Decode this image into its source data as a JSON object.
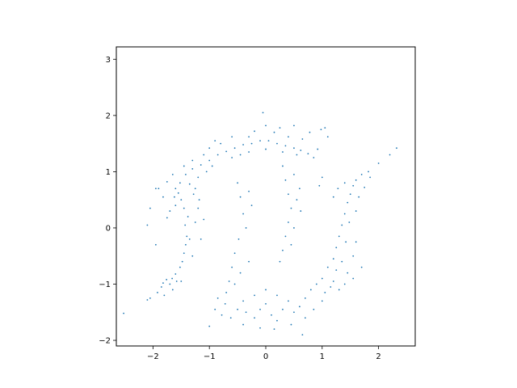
{
  "chart_data": {
    "type": "scatter",
    "title": "",
    "xlabel": "",
    "ylabel": "",
    "xlim": [
      -2.65,
      2.65
    ],
    "ylim": [
      -2.1,
      3.22
    ],
    "x_ticks": [
      -2,
      -1,
      0,
      1,
      2
    ],
    "y_ticks": [
      -2,
      -1,
      0,
      1,
      2,
      3
    ],
    "x_tick_labels": [
      "−2",
      "−1",
      "0",
      "1",
      "2"
    ],
    "y_tick_labels": [
      "−2",
      "−1",
      "0",
      "1",
      "2",
      "3"
    ],
    "grid": false,
    "legend": "none",
    "marker_color": "#1f77b4",
    "series": [
      {
        "points": [
          [
            -2.52,
            -1.52
          ],
          [
            -2.1,
            -1.28
          ],
          [
            -2.05,
            -1.25
          ],
          [
            -1.92,
            -1.15
          ],
          [
            -1.85,
            -1.05
          ],
          [
            -1.82,
            -0.98
          ],
          [
            -1.76,
            -0.92
          ],
          [
            -1.7,
            -1.0
          ],
          [
            -1.66,
            -0.9
          ],
          [
            -1.6,
            -0.82
          ],
          [
            -1.58,
            -0.95
          ],
          [
            -1.52,
            -0.7
          ],
          [
            -1.48,
            -0.6
          ],
          [
            -1.45,
            -0.45
          ],
          [
            -1.42,
            -0.3
          ],
          [
            -1.4,
            -0.15
          ],
          [
            -1.43,
            0.05
          ],
          [
            -1.38,
            0.2
          ],
          [
            -1.45,
            0.35
          ],
          [
            -1.5,
            0.5
          ],
          [
            -1.55,
            0.62
          ],
          [
            -1.6,
            0.7
          ],
          [
            -1.62,
            0.55
          ],
          [
            -1.52,
            0.8
          ],
          [
            -1.42,
            0.95
          ],
          [
            -1.3,
            1.05
          ],
          [
            -1.15,
            1.12
          ],
          [
            -1.0,
            1.2
          ],
          [
            -0.85,
            1.3
          ],
          [
            -0.7,
            1.36
          ],
          [
            -0.55,
            1.42
          ],
          [
            -0.4,
            1.48
          ],
          [
            -0.25,
            1.5
          ],
          [
            -0.1,
            1.55
          ],
          [
            0.05,
            1.55
          ],
          [
            0.2,
            1.5
          ],
          [
            0.35,
            1.46
          ],
          [
            0.5,
            1.42
          ],
          [
            0.62,
            1.38
          ],
          [
            0.75,
            1.32
          ],
          [
            0.85,
            1.25
          ],
          [
            0.92,
            1.4
          ],
          [
            0.98,
            1.75
          ],
          [
            1.05,
            1.78
          ],
          [
            -1.3,
            -0.5
          ],
          [
            -1.35,
            -0.2
          ],
          [
            -1.25,
            0.1
          ],
          [
            -1.2,
            0.35
          ],
          [
            -1.28,
            0.6
          ],
          [
            -1.35,
            0.78
          ],
          [
            -1.6,
            0.4
          ],
          [
            -1.7,
            0.3
          ],
          [
            -1.75,
            0.18
          ],
          [
            -1.82,
            0.55
          ],
          [
            -1.9,
            0.7
          ],
          [
            -1.2,
            0.9
          ],
          [
            -1.05,
            1.0
          ],
          [
            -0.95,
            1.1
          ],
          [
            -0.6,
            1.25
          ],
          [
            -0.45,
            1.3
          ],
          [
            -0.3,
            1.35
          ],
          [
            0.0,
            1.4
          ],
          [
            0.3,
            1.35
          ],
          [
            0.55,
            1.3
          ],
          [
            -0.8,
            1.5
          ],
          [
            -0.6,
            1.62
          ],
          [
            -0.2,
            1.72
          ],
          [
            0.0,
            1.82
          ],
          [
            -0.05,
            2.05
          ],
          [
            0.15,
            1.7
          ],
          [
            0.4,
            1.62
          ],
          [
            0.65,
            1.58
          ],
          [
            -0.45,
            0.55
          ],
          [
            -0.4,
            0.25
          ],
          [
            -0.35,
            0.0
          ],
          [
            -0.48,
            -0.2
          ],
          [
            -0.55,
            -0.45
          ],
          [
            -0.6,
            -0.7
          ],
          [
            -0.65,
            -0.95
          ],
          [
            -0.7,
            -1.15
          ],
          [
            -0.72,
            -1.35
          ],
          [
            -0.78,
            -1.55
          ],
          [
            -0.62,
            -1.6
          ],
          [
            -0.5,
            -1.45
          ],
          [
            -0.4,
            -1.3
          ],
          [
            -0.35,
            -1.5
          ],
          [
            -0.2,
            -1.6
          ],
          [
            -0.1,
            -1.45
          ],
          [
            0.0,
            -1.35
          ],
          [
            0.1,
            -1.55
          ],
          [
            0.2,
            -1.65
          ],
          [
            0.3,
            -1.45
          ],
          [
            0.4,
            -1.3
          ],
          [
            0.5,
            -1.5
          ],
          [
            0.6,
            -1.4
          ],
          [
            0.7,
            -1.25
          ],
          [
            0.8,
            -1.1
          ],
          [
            0.9,
            -1.0
          ],
          [
            1.0,
            -0.9
          ],
          [
            1.05,
            -1.15
          ],
          [
            1.15,
            -1.05
          ],
          [
            1.1,
            -0.7
          ],
          [
            1.2,
            -0.55
          ],
          [
            1.25,
            -0.35
          ],
          [
            1.3,
            -0.15
          ],
          [
            1.35,
            0.05
          ],
          [
            1.4,
            0.25
          ],
          [
            1.45,
            0.45
          ],
          [
            1.5,
            0.6
          ],
          [
            1.55,
            0.75
          ],
          [
            1.6,
            0.85
          ],
          [
            1.7,
            0.95
          ],
          [
            1.82,
            1.0
          ],
          [
            2.0,
            1.15
          ],
          [
            2.2,
            1.3
          ],
          [
            2.32,
            1.42
          ],
          [
            0.3,
            1.1
          ],
          [
            0.35,
            0.85
          ],
          [
            0.4,
            0.6
          ],
          [
            0.45,
            0.35
          ],
          [
            0.4,
            0.1
          ],
          [
            0.35,
            -0.15
          ],
          [
            0.3,
            -0.4
          ],
          [
            0.25,
            -0.6
          ],
          [
            0.5,
            0.95
          ],
          [
            0.55,
            0.5
          ],
          [
            0.5,
            0.0
          ],
          [
            0.45,
            -0.3
          ],
          [
            0.6,
            0.7
          ],
          [
            0.62,
            0.3
          ],
          [
            1.35,
            -0.6
          ],
          [
            1.45,
            -0.8
          ],
          [
            1.55,
            -0.5
          ],
          [
            1.6,
            -0.25
          ],
          [
            1.2,
            -0.95
          ],
          [
            1.3,
            -1.1
          ],
          [
            1.4,
            -1.0
          ],
          [
            1.55,
            -0.9
          ],
          [
            1.7,
            -0.7
          ],
          [
            -0.55,
            -1.0
          ],
          [
            -0.45,
            -0.8
          ],
          [
            -0.3,
            -0.6
          ],
          [
            -0.25,
            0.4
          ],
          [
            -0.3,
            0.65
          ],
          [
            -0.5,
            0.8
          ],
          [
            -0.85,
            -1.25
          ],
          [
            -0.9,
            -1.45
          ],
          [
            -1.0,
            -1.75
          ],
          [
            -0.4,
            -1.72
          ],
          [
            -0.1,
            -1.78
          ],
          [
            0.15,
            -1.8
          ],
          [
            0.45,
            -1.72
          ],
          [
            0.65,
            -1.9
          ],
          [
            -0.2,
            -1.2
          ],
          [
            0.0,
            -1.1
          ],
          [
            0.2,
            -1.2
          ],
          [
            0.7,
            -1.6
          ],
          [
            0.85,
            -1.45
          ],
          [
            1.0,
            -1.3
          ],
          [
            -1.95,
            0.7
          ],
          [
            -1.75,
            0.82
          ],
          [
            -1.65,
            0.95
          ],
          [
            -1.45,
            1.1
          ],
          [
            -1.3,
            1.2
          ],
          [
            -1.1,
            1.3
          ],
          [
            -1.0,
            1.42
          ],
          [
            -0.9,
            1.55
          ],
          [
            -0.3,
            1.62
          ],
          [
            0.25,
            1.78
          ],
          [
            0.5,
            1.82
          ],
          [
            0.78,
            1.7
          ],
          [
            1.1,
            1.62
          ],
          [
            0.95,
            0.75
          ],
          [
            1.0,
            0.9
          ],
          [
            1.2,
            0.55
          ],
          [
            1.28,
            0.7
          ],
          [
            1.4,
            0.8
          ],
          [
            1.25,
            -0.75
          ],
          [
            1.42,
            -0.25
          ],
          [
            1.48,
            0.1
          ],
          [
            1.6,
            0.3
          ],
          [
            1.65,
            0.55
          ],
          [
            1.75,
            0.72
          ],
          [
            1.85,
            0.9
          ],
          [
            -1.5,
            -0.95
          ],
          [
            -1.65,
            -1.1
          ],
          [
            -1.8,
            -1.2
          ],
          [
            -1.15,
            -0.2
          ],
          [
            -1.1,
            0.15
          ],
          [
            -1.18,
            0.5
          ],
          [
            -1.25,
            0.7
          ],
          [
            -2.05,
            0.35
          ],
          [
            -2.1,
            0.05
          ],
          [
            -1.95,
            -0.3
          ]
        ]
      }
    ]
  }
}
